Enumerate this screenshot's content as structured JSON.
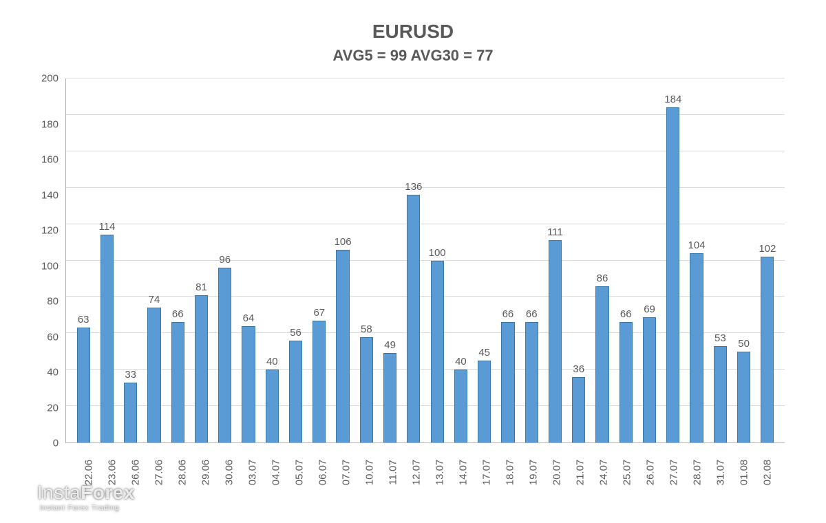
{
  "chart": {
    "type": "bar",
    "title": "EURUSD",
    "title_fontsize": 28,
    "title_color": "#595959",
    "subtitle": "AVG5 = 99 AVG30 = 77",
    "subtitle_fontsize": 22,
    "subtitle_color": "#595959",
    "background_color": "#ffffff",
    "grid_color": "#d9d9d9",
    "axis_line_color": "#b0b0b0",
    "ylim": [
      0,
      200
    ],
    "ytick_step": 20,
    "yticks": [
      200,
      180,
      160,
      140,
      120,
      100,
      80,
      60,
      40,
      20,
      0
    ],
    "ytick_fontsize": 15,
    "xlabel_fontsize": 15,
    "value_label_fontsize": 15,
    "bar_fill": "#5b9bd5",
    "bar_border": "#3a75a8",
    "bar_width": 0.56,
    "categories": [
      "22.06",
      "23.06",
      "26.06",
      "27.06",
      "28.06",
      "29.06",
      "30.06",
      "03.07",
      "04.07",
      "05.07",
      "06.07",
      "07.07",
      "10.07",
      "11.07",
      "12.07",
      "13.07",
      "14.07",
      "17.07",
      "18.07",
      "19.07",
      "20.07",
      "21.07",
      "24.07",
      "25.07",
      "26.07",
      "27.07",
      "28.07",
      "31.07",
      "01.08",
      "02.08"
    ],
    "values": [
      63,
      114,
      33,
      74,
      66,
      81,
      96,
      64,
      40,
      56,
      67,
      106,
      58,
      49,
      136,
      100,
      40,
      45,
      66,
      66,
      111,
      36,
      86,
      66,
      69,
      184,
      104,
      53,
      50,
      102
    ]
  },
  "watermark": {
    "brand_prefix": "Insta",
    "brand_suffix": "Forex",
    "tagline": "Instant Forex Trading"
  }
}
